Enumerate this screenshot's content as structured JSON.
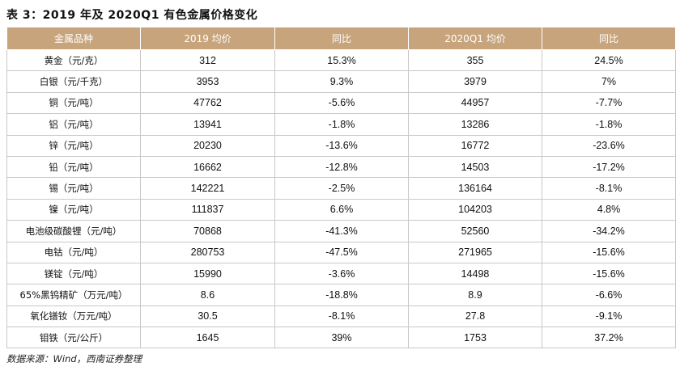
{
  "title": "表 3：2019 年及 2020Q1 有色金属价格变化",
  "headers": [
    "金属品种",
    "2019 均价",
    "同比",
    "2020Q1 均价",
    "同比"
  ],
  "rows": [
    {
      "name": "黄金（元/克）",
      "avg2019": "312",
      "yoy2019": "15.3%",
      "avgQ1": "355",
      "yoyQ1": "24.5%"
    },
    {
      "name": "白银（元/千克）",
      "avg2019": "3953",
      "yoy2019": "9.3%",
      "avgQ1": "3979",
      "yoyQ1": "7%"
    },
    {
      "name": "铜（元/吨）",
      "avg2019": "47762",
      "yoy2019": "-5.6%",
      "avgQ1": "44957",
      "yoyQ1": "-7.7%"
    },
    {
      "name": "铝（元/吨）",
      "avg2019": "13941",
      "yoy2019": "-1.8%",
      "avgQ1": "13286",
      "yoyQ1": "-1.8%"
    },
    {
      "name": "锌（元/吨）",
      "avg2019": "20230",
      "yoy2019": "-13.6%",
      "avgQ1": "16772",
      "yoyQ1": "-23.6%"
    },
    {
      "name": "铅（元/吨）",
      "avg2019": "16662",
      "yoy2019": "-12.8%",
      "avgQ1": "14503",
      "yoyQ1": "-17.2%"
    },
    {
      "name": "锡（元/吨）",
      "avg2019": "142221",
      "yoy2019": "-2.5%",
      "avgQ1": "136164",
      "yoyQ1": "-8.1%"
    },
    {
      "name": "镍（元/吨）",
      "avg2019": "111837",
      "yoy2019": "6.6%",
      "avgQ1": "104203",
      "yoyQ1": "4.8%"
    },
    {
      "name": "电池级碳酸锂（元/吨）",
      "avg2019": "70868",
      "yoy2019": "-41.3%",
      "avgQ1": "52560",
      "yoyQ1": "-34.2%"
    },
    {
      "name": "电钴（元/吨）",
      "avg2019": "280753",
      "yoy2019": "-47.5%",
      "avgQ1": "271965",
      "yoyQ1": "-15.6%"
    },
    {
      "name": "镁锭（元/吨）",
      "avg2019": "15990",
      "yoy2019": "-3.6%",
      "avgQ1": "14498",
      "yoyQ1": "-15.6%"
    },
    {
      "name": "65%黑钨精矿（万元/吨）",
      "avg2019": "8.6",
      "yoy2019": "-18.8%",
      "avgQ1": "8.9",
      "yoyQ1": "-6.6%"
    },
    {
      "name": "氧化镨钕（万元/吨）",
      "avg2019": "30.5",
      "yoy2019": "-8.1%",
      "avgQ1": "27.8",
      "yoyQ1": "-9.1%"
    },
    {
      "name": "钼铁（元/公斤）",
      "avg2019": "1645",
      "yoy2019": "39%",
      "avgQ1": "1753",
      "yoyQ1": "37.2%"
    }
  ],
  "source": "数据来源：Wind，西南证券整理",
  "colors": {
    "header_bg": "#c7a47c",
    "header_text": "#ffffff",
    "border": "#c8c8c8"
  }
}
